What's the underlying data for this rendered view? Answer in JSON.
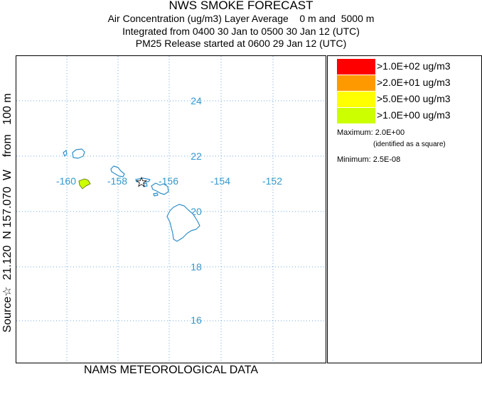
{
  "header": {
    "title": "NWS SMOKE FORECAST",
    "line1": "Air Concentration (ug/m3) Layer Average    0 m and  5000 m",
    "line2": "Integrated from 0400 30 Jan to 0500 30 Jan 12 (UTC)",
    "line3": "PM25 Release started at 0600 29 Jan 12 (UTC)"
  },
  "side_label": "Source☆  21.120  N 157.070  W    from   100 m",
  "footer": "NAMS METEOROLOGICAL DATA",
  "map": {
    "lon_labels": [
      "-160",
      "-158",
      "-156",
      "-154",
      "-152"
    ],
    "lat_labels": [
      "24",
      "22",
      "20",
      "18",
      "16"
    ],
    "grid_color": "#6fa8dc",
    "label_color": "#3399cc",
    "coast_color": "#2f8fc8",
    "plume_color": "#ccff00",
    "source_marker": "star-icon"
  },
  "legend": {
    "items": [
      {
        "label": ">1.0E+02 ug/m3",
        "color": "#ff0000"
      },
      {
        "label": ">2.0E+01 ug/m3",
        "color": "#ff9900"
      },
      {
        "label": ">5.0E+00 ug/m3",
        "color": "#ffff00"
      },
      {
        "label": ">1.0E+00 ug/m3",
        "color": "#ccff00"
      }
    ],
    "maximum": "Maximum: 2.0E+00",
    "maximum_note": "(identified as a square)",
    "minimum": "Minimum: 2.5E-08"
  }
}
